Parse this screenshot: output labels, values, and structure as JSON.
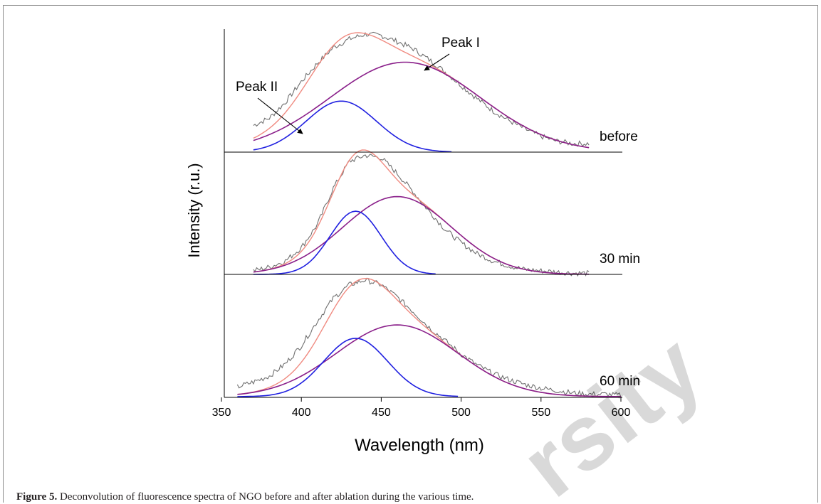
{
  "caption": {
    "label": "Figure 5.",
    "text": "Deconvolution of fluorescence spectra of NGO before and after ablation during the various time."
  },
  "watermark": {
    "text": "rsity"
  },
  "colors": {
    "measured": "#707070",
    "fit": "#f08a80",
    "peak1": "#8a1f8a",
    "peak2": "#2020e0",
    "axis": "#000000"
  },
  "chart_data": {
    "type": "line",
    "xlabel": "Wavelength (nm)",
    "ylabel": "Intensity (r.u.)",
    "xlim": [
      350,
      600
    ],
    "xticks": [
      350,
      400,
      450,
      500,
      550,
      600
    ],
    "annotations": [
      "Peak I",
      "Peak II"
    ],
    "panels": [
      {
        "label": "before",
        "ylim": [
          0,
          1
        ],
        "x_range": [
          370,
          580
        ],
        "peak1": {
          "center": 465,
          "height": 0.74,
          "sigma": 47
        },
        "peak2": {
          "center": 425,
          "height": 0.42,
          "sigma": 22
        },
        "series": [
          {
            "x": [
              370,
              380,
              390,
              400,
              410,
              420,
              430,
              440,
              450,
              460,
              470,
              480,
              490,
              500,
              510,
              520,
              530,
              540,
              550,
              560,
              570,
              580
            ],
            "values": [
              0.22,
              0.28,
              0.41,
              0.58,
              0.73,
              0.86,
              0.93,
              0.97,
              0.96,
              0.91,
              0.85,
              0.76,
              0.66,
              0.55,
              0.44,
              0.34,
              0.26,
              0.19,
              0.13,
              0.09,
              0.07,
              0.07
            ]
          }
        ]
      },
      {
        "label": "30 min",
        "ylim": [
          0,
          1
        ],
        "x_range": [
          370,
          580
        ],
        "peak1": {
          "center": 460,
          "height": 0.64,
          "sigma": 34
        },
        "peak2": {
          "center": 434,
          "height": 0.52,
          "sigma": 16
        },
        "series": [
          {
            "x": [
              370,
              380,
              390,
              400,
              410,
              420,
              430,
              440,
              450,
              460,
              470,
              480,
              490,
              500,
              510,
              520,
              530,
              540,
              550,
              560,
              570,
              580
            ],
            "values": [
              0.03,
              0.06,
              0.11,
              0.22,
              0.41,
              0.71,
              0.93,
              0.98,
              0.96,
              0.83,
              0.68,
              0.52,
              0.37,
              0.26,
              0.17,
              0.11,
              0.07,
              0.04,
              0.03,
              0.02,
              0.01,
              0.01
            ]
          }
        ]
      },
      {
        "label": "60 min",
        "ylim": [
          0,
          1
        ],
        "x_range": [
          360,
          600
        ],
        "peak1": {
          "center": 460,
          "height": 0.59,
          "sigma": 38
        },
        "peak2": {
          "center": 434,
          "height": 0.48,
          "sigma": 20
        },
        "series": [
          {
            "x": [
              360,
              370,
              380,
              390,
              400,
              410,
              420,
              430,
              440,
              450,
              460,
              470,
              480,
              490,
              500,
              510,
              520,
              530,
              540,
              550,
              560,
              570,
              580,
              590,
              600
            ],
            "values": [
              0.08,
              0.12,
              0.17,
              0.27,
              0.42,
              0.62,
              0.81,
              0.92,
              0.96,
              0.92,
              0.82,
              0.7,
              0.57,
              0.46,
              0.35,
              0.26,
              0.19,
              0.14,
              0.1,
              0.07,
              0.05,
              0.03,
              0.02,
              0.02,
              0.01
            ]
          }
        ]
      }
    ]
  }
}
